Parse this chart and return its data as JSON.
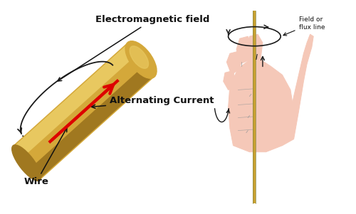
{
  "bg_color": "#ffffff",
  "wire_color": "#c8a030",
  "wire_highlight": "#e8c860",
  "wire_shadow": "#a07820",
  "wire_mid": "#d4a83a",
  "current_arrow_color": "#dd0000",
  "field_arrow_color": "#1a1a1a",
  "label_em_field": "Electromagnetic field",
  "label_alt_current": "Alternating Current",
  "label_wire": "Wire",
  "label_field_flux": "Field or\nflux line",
  "label_current_i": "I",
  "text_color": "#111111",
  "hand_fill": "#f5c8b8",
  "hand_edge": "#999999",
  "title_fontsize": 9.5,
  "annotation_fontsize": 7.5
}
